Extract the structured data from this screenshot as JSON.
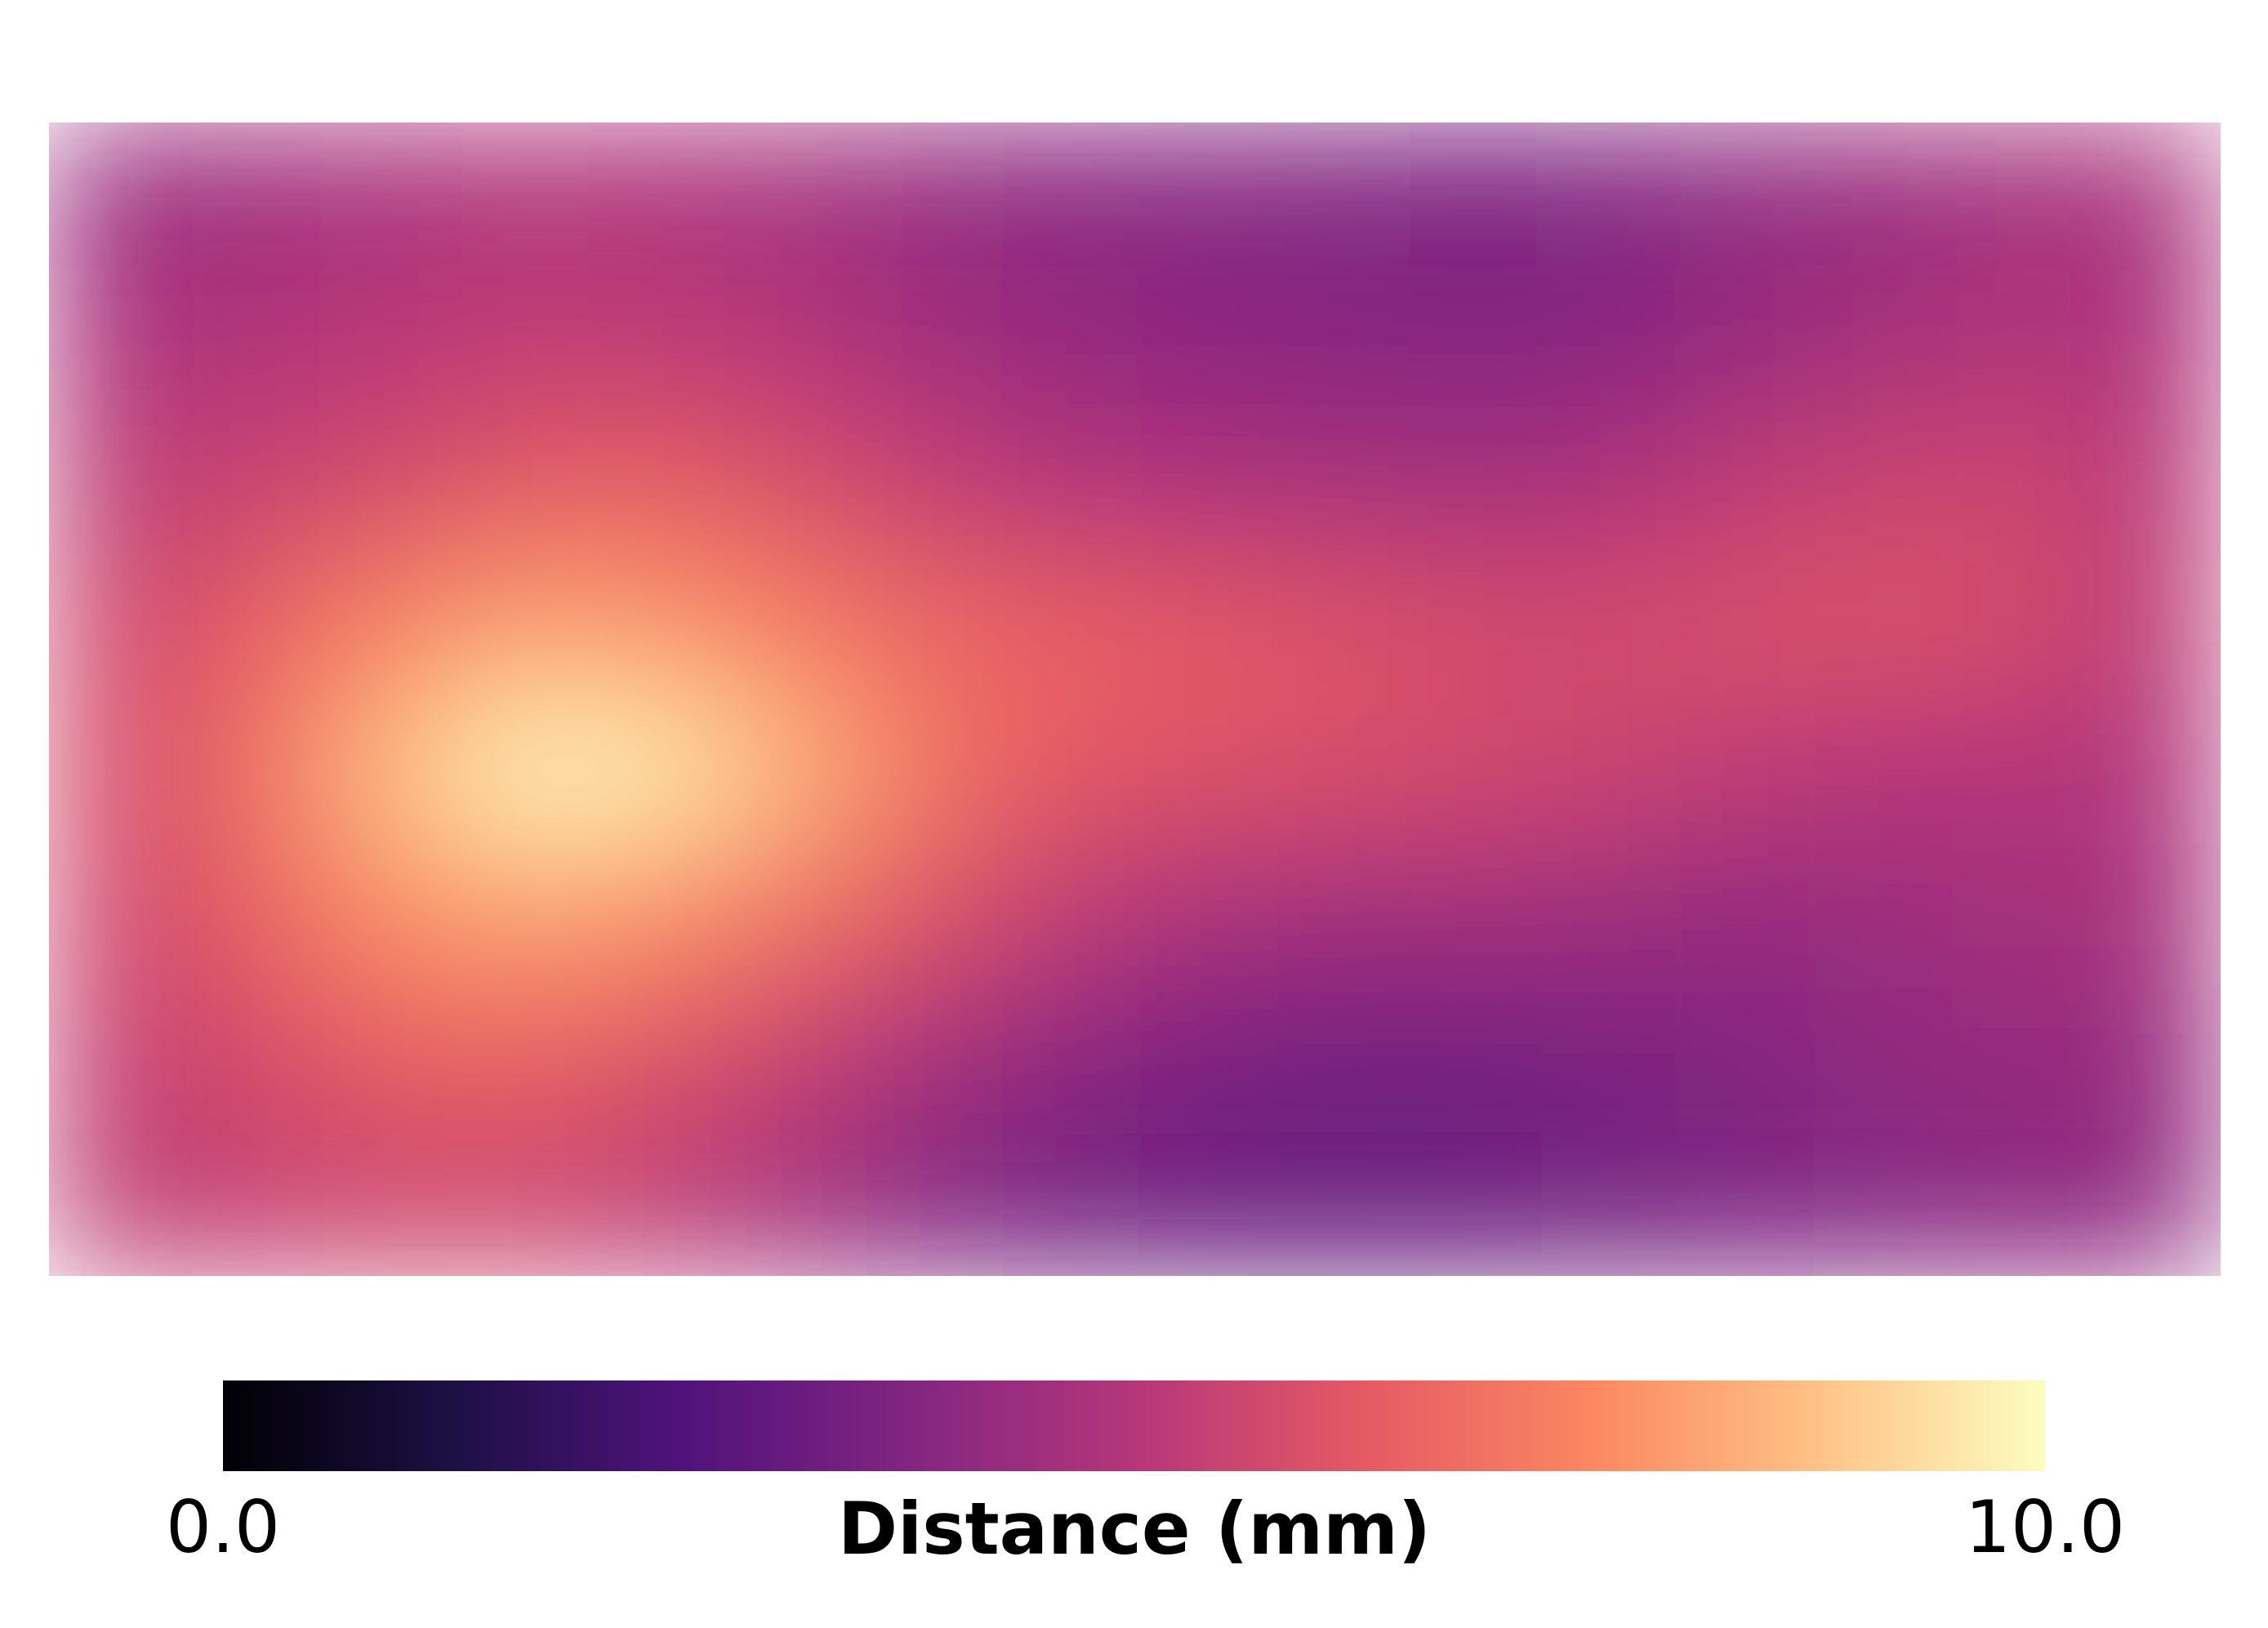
{
  "chart_data": {
    "type": "heatmap",
    "colorbar_label": "Distance (mm)",
    "clim": [
      0,
      10
    ],
    "cticks": [
      {
        "value": 0,
        "label": "0.0"
      },
      {
        "value": 10,
        "label": "10.0"
      }
    ],
    "colorscale": [
      "#000004",
      "#1c1044",
      "#4f127b",
      "#812581",
      "#b5367a",
      "#e55964",
      "#fb8761",
      "#fec287",
      "#fcfdbf"
    ],
    "z": [
      [
        4.3,
        4.5,
        4.7,
        4.9,
        4.8,
        4.6,
        4.2,
        4.0,
        3.9,
        3.8,
        3.6,
        3.8,
        4.1,
        4.3,
        4.6,
        4.7
      ],
      [
        4.8,
        4.9,
        5.1,
        5.3,
        5.2,
        5.0,
        4.5,
        4.2,
        4.0,
        3.9,
        3.8,
        3.9,
        4.3,
        4.6,
        4.9,
        4.8
      ],
      [
        5.2,
        5.5,
        5.8,
        6.2,
        6.3,
        5.9,
        5.4,
        5.0,
        4.8,
        4.7,
        4.6,
        4.8,
        5.2,
        5.5,
        5.6,
        5.1
      ],
      [
        5.6,
        6.4,
        7.4,
        8.0,
        7.8,
        7.2,
        6.6,
        6.4,
        6.2,
        6.0,
        5.8,
        5.8,
        5.9,
        6.0,
        5.8,
        5.2
      ],
      [
        5.8,
        6.8,
        8.6,
        9.8,
        9.6,
        8.4,
        7.0,
        6.2,
        6.0,
        5.9,
        5.7,
        5.5,
        5.2,
        5.0,
        5.0,
        4.9
      ],
      [
        5.6,
        6.4,
        7.6,
        8.0,
        7.6,
        6.9,
        6.0,
        5.2,
        4.7,
        4.5,
        4.5,
        4.4,
        4.2,
        4.4,
        4.6,
        4.7
      ],
      [
        5.4,
        5.8,
        6.3,
        6.4,
        6.0,
        5.4,
        4.6,
        4.0,
        3.6,
        3.4,
        3.4,
        3.6,
        3.8,
        4.1,
        4.2,
        4.3
      ],
      [
        5.2,
        5.4,
        5.6,
        5.6,
        5.2,
        4.6,
        3.8,
        3.4,
        3.2,
        3.1,
        3.2,
        3.4,
        3.6,
        3.8,
        4.0,
        4.1
      ]
    ]
  }
}
